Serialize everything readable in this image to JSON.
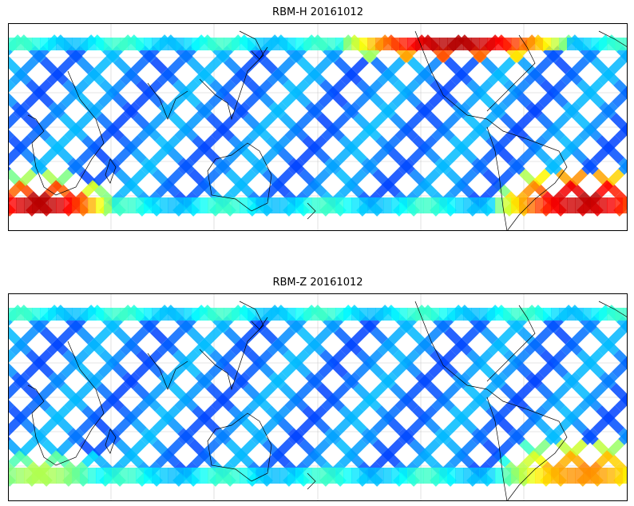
{
  "panels": [
    {
      "title": "RBM-H 20161012",
      "colorscale": "jet",
      "hot_regions": [
        {
          "area": "southern-ocean-west",
          "level": "high"
        },
        {
          "area": "north-pacific-east",
          "level": "high"
        },
        {
          "area": "south-atlantic",
          "level": "high"
        }
      ]
    },
    {
      "title": "RBM-Z 20161012",
      "colorscale": "jet",
      "hot_regions": [
        {
          "area": "south-atlantic",
          "level": "medium"
        },
        {
          "area": "southern-ocean-west",
          "level": "low"
        }
      ]
    }
  ],
  "colors": {
    "track_base": "#6570f2",
    "background": "#ffffff",
    "coast": "#000000"
  }
}
